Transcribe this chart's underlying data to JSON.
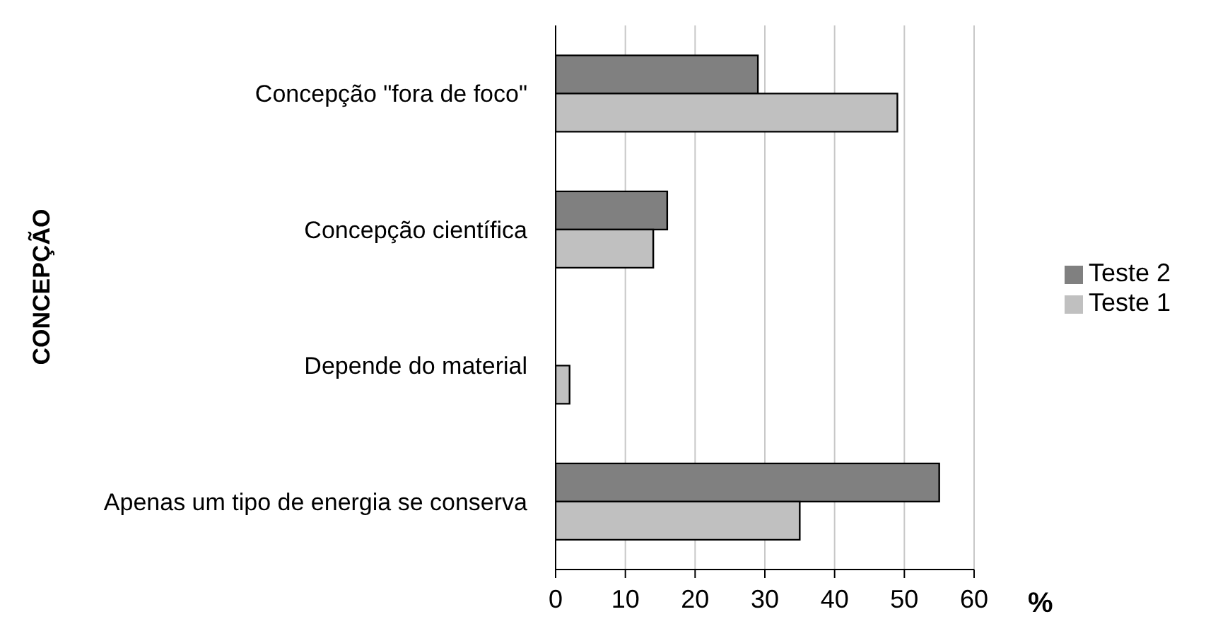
{
  "chart_data": {
    "type": "bar",
    "orientation": "horizontal",
    "xlabel": "%",
    "ylabel": "CONCEPÇÃO",
    "categories": [
      "Concepção  \"fora de foco\"",
      "Concepção científica",
      "Depende do material",
      "Apenas um tipo de energia se conserva"
    ],
    "series": [
      {
        "name": "Teste 2",
        "color": "#808080",
        "values": [
          29,
          16,
          0,
          55
        ]
      },
      {
        "name": "Teste 1",
        "color": "#c0c0c0",
        "values": [
          49,
          14,
          2,
          35
        ]
      }
    ],
    "xlim": [
      0,
      60
    ],
    "xticks": [
      0,
      10,
      20,
      30,
      40,
      50,
      60
    ],
    "grid": "x",
    "legend": "right"
  }
}
